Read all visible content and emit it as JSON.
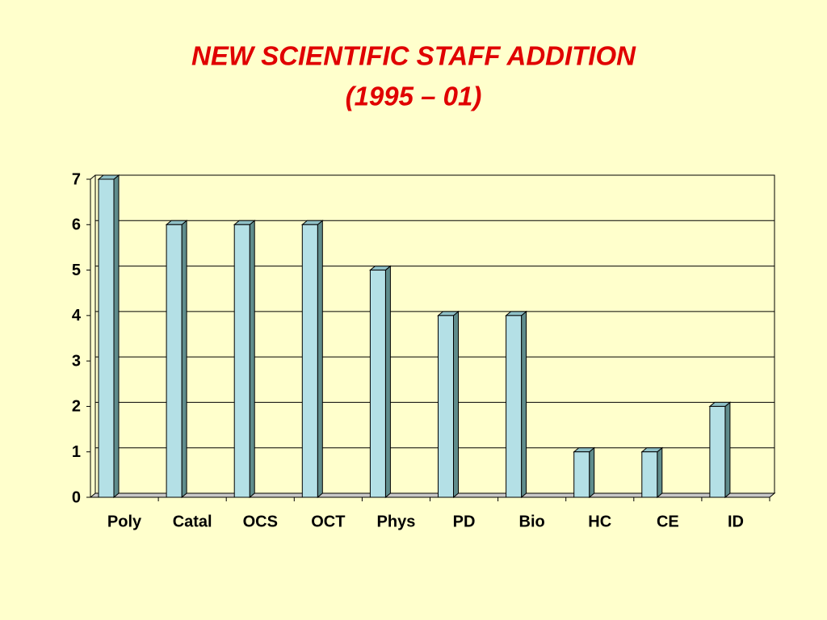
{
  "chart_data": {
    "type": "bar",
    "title": "NEW SCIENTIFIC STAFF ADDITION",
    "subtitle": "(1995 – 01)",
    "categories": [
      "Poly",
      "Catal",
      "OCS",
      "OCT",
      "Phys",
      "PD",
      "Bio",
      "HC",
      "CE",
      "ID"
    ],
    "values": [
      7,
      6,
      6,
      6,
      5,
      4,
      4,
      1,
      1,
      2
    ],
    "color": "#b4e0e6",
    "ylim": [
      0,
      7
    ],
    "yticks": [
      0,
      1,
      2,
      3,
      4,
      5,
      6,
      7
    ],
    "grid": true
  }
}
